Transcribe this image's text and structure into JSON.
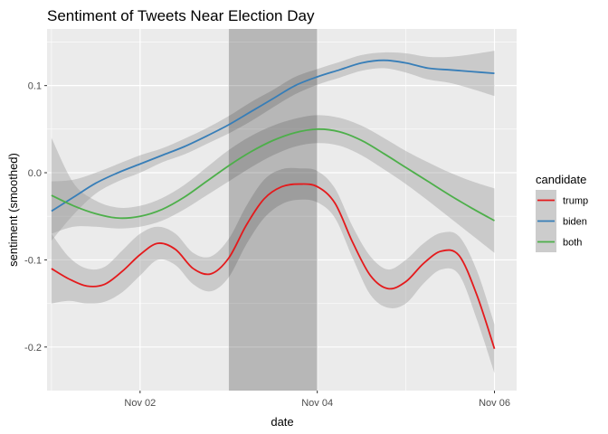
{
  "chart_data": {
    "type": "line",
    "title": "Sentiment of Tweets Near Election Day",
    "xlabel": "date",
    "ylabel": "sentiment (smoothed)",
    "x_ticks": [
      "Nov 02",
      "Nov 04",
      "Nov 06"
    ],
    "x_tick_values": [
      2,
      4,
      6
    ],
    "y_ticks": [
      "-0.2",
      "-0.1",
      "0.0",
      "0.1"
    ],
    "y_tick_values": [
      -0.2,
      -0.1,
      0.0,
      0.1
    ],
    "xlim": [
      0.95,
      6.25
    ],
    "ylim": [
      -0.25,
      0.165
    ],
    "grid": true,
    "highlight_region": {
      "x_start": 3.0,
      "x_end": 4.0,
      "color": "#000000",
      "opacity": 0.22
    },
    "legend": {
      "title": "candidate",
      "position": "right"
    },
    "series": [
      {
        "name": "trump",
        "color": "#e41a1c",
        "x": [
          1.0,
          1.2,
          1.4,
          1.6,
          1.8,
          2.0,
          2.2,
          2.4,
          2.6,
          2.8,
          3.0,
          3.2,
          3.4,
          3.6,
          3.8,
          4.0,
          4.2,
          4.4,
          4.6,
          4.8,
          5.0,
          5.2,
          5.4,
          5.6,
          5.8,
          6.0
        ],
        "y": [
          -0.11,
          -0.122,
          -0.13,
          -0.128,
          -0.113,
          -0.094,
          -0.081,
          -0.088,
          -0.11,
          -0.116,
          -0.098,
          -0.06,
          -0.03,
          -0.016,
          -0.013,
          -0.016,
          -0.035,
          -0.08,
          -0.118,
          -0.133,
          -0.125,
          -0.104,
          -0.09,
          -0.095,
          -0.14,
          -0.202
        ],
        "ci_low": [
          -0.15,
          -0.147,
          -0.15,
          -0.148,
          -0.137,
          -0.118,
          -0.1,
          -0.106,
          -0.128,
          -0.136,
          -0.12,
          -0.082,
          -0.052,
          -0.036,
          -0.031,
          -0.034,
          -0.052,
          -0.098,
          -0.14,
          -0.155,
          -0.15,
          -0.127,
          -0.111,
          -0.117,
          -0.168,
          -0.23
        ],
        "ci_high": [
          -0.07,
          -0.097,
          -0.11,
          -0.108,
          -0.089,
          -0.07,
          -0.062,
          -0.07,
          -0.092,
          -0.096,
          -0.076,
          -0.038,
          -0.008,
          0.004,
          0.005,
          0.002,
          -0.018,
          -0.062,
          -0.096,
          -0.111,
          -0.1,
          -0.081,
          -0.069,
          -0.073,
          -0.112,
          -0.174
        ]
      },
      {
        "name": "biden",
        "color": "#377eb8",
        "x": [
          1.0,
          1.25,
          1.5,
          1.75,
          2.0,
          2.25,
          2.5,
          2.75,
          3.0,
          3.25,
          3.5,
          3.75,
          4.0,
          4.25,
          4.5,
          4.75,
          5.0,
          5.25,
          5.5,
          5.75,
          6.0
        ],
        "y": [
          -0.044,
          -0.028,
          -0.012,
          0.0,
          0.01,
          0.02,
          0.03,
          0.042,
          0.055,
          0.07,
          0.085,
          0.1,
          0.11,
          0.118,
          0.126,
          0.129,
          0.126,
          0.12,
          0.118,
          0.116,
          0.114
        ],
        "ci_low": [
          -0.078,
          -0.048,
          -0.024,
          -0.01,
          0.0,
          0.012,
          0.021,
          0.033,
          0.045,
          0.059,
          0.075,
          0.09,
          0.101,
          0.109,
          0.117,
          0.12,
          0.115,
          0.107,
          0.103,
          0.096,
          0.088
        ],
        "ci_high": [
          -0.01,
          -0.008,
          0.0,
          0.01,
          0.02,
          0.028,
          0.039,
          0.051,
          0.065,
          0.081,
          0.095,
          0.11,
          0.119,
          0.127,
          0.135,
          0.138,
          0.137,
          0.133,
          0.133,
          0.136,
          0.14
        ]
      },
      {
        "name": "both",
        "color": "#4daf4a",
        "x": [
          1.0,
          1.25,
          1.5,
          1.75,
          2.0,
          2.25,
          2.5,
          2.75,
          3.0,
          3.25,
          3.5,
          3.75,
          4.0,
          4.25,
          4.5,
          4.75,
          5.0,
          5.25,
          5.5,
          5.75,
          6.0
        ],
        "y": [
          -0.026,
          -0.038,
          -0.047,
          -0.052,
          -0.05,
          -0.042,
          -0.028,
          -0.01,
          0.008,
          0.024,
          0.037,
          0.046,
          0.05,
          0.047,
          0.037,
          0.022,
          0.006,
          -0.01,
          -0.026,
          -0.041,
          -0.055
        ],
        "ci_low": [
          -0.07,
          -0.062,
          -0.062,
          -0.064,
          -0.062,
          -0.055,
          -0.042,
          -0.026,
          -0.01,
          0.006,
          0.02,
          0.03,
          0.034,
          0.031,
          0.02,
          0.004,
          -0.013,
          -0.032,
          -0.052,
          -0.072,
          -0.092
        ],
        "ci_high": [
          0.04,
          -0.012,
          -0.032,
          -0.04,
          -0.038,
          -0.029,
          -0.014,
          0.006,
          0.026,
          0.042,
          0.054,
          0.062,
          0.066,
          0.063,
          0.054,
          0.04,
          0.025,
          0.012,
          0.0,
          -0.01,
          -0.018
        ]
      }
    ]
  },
  "colors": {
    "panel_background": "#ebebeb",
    "grid_major": "#ffffff",
    "ribbon": "#999999"
  }
}
